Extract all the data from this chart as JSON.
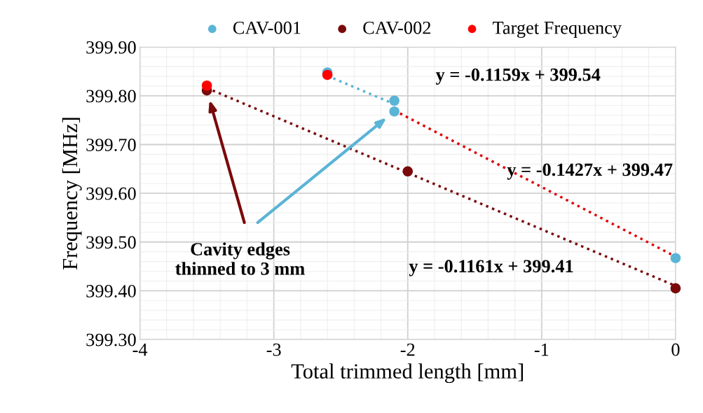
{
  "chart_data": {
    "type": "scatter",
    "xlabel": "Total trimmed length [mm]",
    "ylabel": "Frequency [MHz]",
    "xlim": [
      -4,
      0
    ],
    "xticks": [
      -4,
      -3,
      -2,
      -1,
      0
    ],
    "ylim": [
      399.3,
      399.9
    ],
    "yticks": [
      {
        "value": 399.3,
        "label": "399.30"
      },
      {
        "value": 399.4,
        "label": "399.40"
      },
      {
        "value": 399.5,
        "label": "399.50"
      },
      {
        "value": 399.6,
        "label": "399.60"
      },
      {
        "value": 399.7,
        "label": "399.70"
      },
      {
        "value": 399.8,
        "label": "399.80"
      },
      {
        "value": 399.9,
        "label": "399.90"
      }
    ],
    "grid": true,
    "legend": "top",
    "marker": "circle",
    "series": [
      {
        "name": "CAV-001",
        "color": "#5ab4d6",
        "x": [
          -2.6,
          -2.1,
          -2.1,
          0
        ],
        "values": [
          399.848,
          399.79,
          399.768,
          399.467
        ]
      },
      {
        "name": "CAV-002",
        "color": "#7a0a0a",
        "x": [
          -3.5,
          -2.0,
          0
        ],
        "values": [
          399.811,
          399.645,
          399.405
        ]
      },
      {
        "name": "Target Frequency",
        "color": "#ff0000",
        "x": [
          -3.5,
          -2.6
        ],
        "values": [
          399.821,
          399.843
        ]
      },
      {
        "type": "line",
        "marker": "none",
        "line_style": "dotted",
        "color": "#5ab4d6",
        "x": [
          -2.6,
          -2.1
        ],
        "values": [
          399.841,
          399.783
        ]
      },
      {
        "type": "line",
        "marker": "none",
        "line_style": "dotted",
        "color": "#e00000",
        "x": [
          -2.1,
          0
        ],
        "values": [
          399.77,
          399.47
        ]
      },
      {
        "type": "line",
        "marker": "none",
        "line_style": "dotted",
        "color": "#7a0a0a",
        "x": [
          -3.5,
          0
        ],
        "values": [
          399.816,
          399.41
        ]
      }
    ],
    "annotations": [
      "y = -0.1159x + 399.54",
      "y = -0.1427x + 399.47",
      "y = -0.1161x + 399.41",
      "Cavity edges\nthinned to 3 mm"
    ]
  }
}
